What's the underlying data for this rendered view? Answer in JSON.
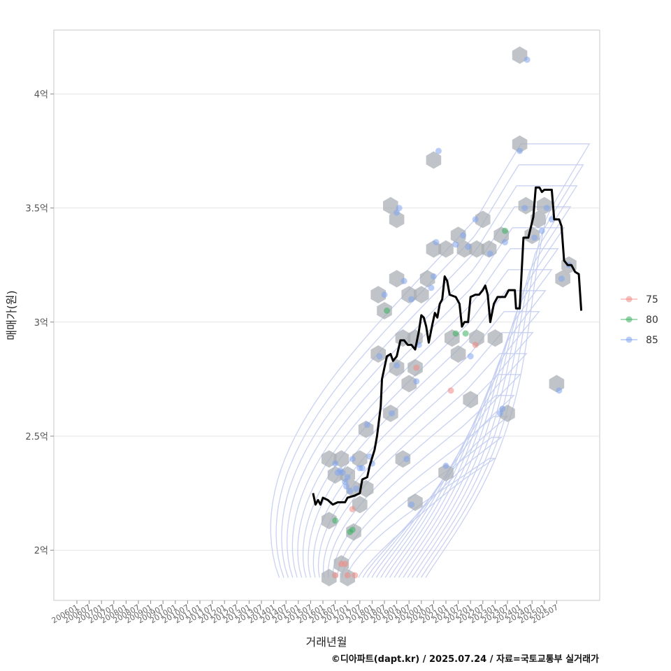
{
  "chart_data": {
    "type": "scatter",
    "xlabel": "거래년월",
    "ylabel": "매매가(원)",
    "caption": "©디아파트(dapt.kr) / 2025.07.24 / 자료=국토교통부 실거래가",
    "x_ticks": [
      "200601",
      "200607",
      "200701",
      "200707",
      "200801",
      "200807",
      "200901",
      "200907",
      "201001",
      "201007",
      "201101",
      "201107",
      "201201",
      "201207",
      "201301",
      "201307",
      "201401",
      "201407",
      "201501",
      "201507",
      "201601",
      "201607",
      "201701",
      "201707",
      "201801",
      "201807",
      "201901",
      "201907",
      "202001",
      "202007",
      "202101",
      "202107",
      "202201",
      "202207",
      "202301",
      "202307",
      "202401",
      "202407",
      "202501",
      "202507"
    ],
    "y_ticks": [
      {
        "value": 2.0,
        "label": "2억"
      },
      {
        "value": 2.5,
        "label": "2.5억"
      },
      {
        "value": 3.0,
        "label": "3억"
      },
      {
        "value": 3.5,
        "label": "3.5억"
      },
      {
        "value": 4.0,
        "label": "4억"
      }
    ],
    "ylim": [
      1.78,
      4.28
    ],
    "y_unit": "억원",
    "grid": true,
    "legend_position": "right",
    "legend": [
      {
        "label": "75",
        "color": "#f08b84"
      },
      {
        "label": "80",
        "color": "#38b060"
      },
      {
        "label": "85",
        "color": "#7fa4ee"
      }
    ],
    "colors": {
      "hex": "#a7adb3",
      "line": "#000000",
      "contour": "#c3cdf0",
      "grid": "#e3e3e3"
    },
    "series": [
      {
        "name": "75",
        "points": [
          [
            2016.5,
            1.89
          ],
          [
            2016.75,
            1.94
          ],
          [
            2016.9,
            1.94
          ],
          [
            2017.0,
            1.89
          ],
          [
            2017.3,
            1.89
          ],
          [
            2017.2,
            2.18
          ],
          [
            2019.8,
            2.8
          ],
          [
            2021.2,
            2.7
          ],
          [
            2022.2,
            2.9
          ]
        ]
      },
      {
        "name": "80",
        "points": [
          [
            2016.5,
            2.13
          ],
          [
            2017.1,
            2.08
          ],
          [
            2017.2,
            2.09
          ],
          [
            2018.6,
            3.05
          ],
          [
            2021.4,
            2.95
          ],
          [
            2021.8,
            2.95
          ],
          [
            2023.4,
            3.4
          ]
        ]
      },
      {
        "name": "85",
        "points": [
          [
            2016.5,
            2.38
          ],
          [
            2016.6,
            2.34
          ],
          [
            2016.7,
            2.35
          ],
          [
            2016.8,
            2.34
          ],
          [
            2016.9,
            2.3
          ],
          [
            2016.95,
            2.28
          ],
          [
            2017.0,
            2.32
          ],
          [
            2017.1,
            2.26
          ],
          [
            2017.2,
            2.4
          ],
          [
            2017.35,
            2.27
          ],
          [
            2017.5,
            2.36
          ],
          [
            2017.6,
            2.36
          ],
          [
            2017.8,
            2.55
          ],
          [
            2017.9,
            2.41
          ],
          [
            2018.0,
            2.38
          ],
          [
            2018.3,
            2.85
          ],
          [
            2018.5,
            3.12
          ],
          [
            2018.8,
            2.6
          ],
          [
            2019.0,
            2.81
          ],
          [
            2019.0,
            3.48
          ],
          [
            2019.1,
            3.5
          ],
          [
            2019.3,
            3.18
          ],
          [
            2019.4,
            2.4
          ],
          [
            2019.6,
            3.1
          ],
          [
            2019.6,
            2.2
          ],
          [
            2019.8,
            2.74
          ],
          [
            2019.9,
            2.9
          ],
          [
            2020.4,
            3.15
          ],
          [
            2020.5,
            3.2
          ],
          [
            2020.6,
            3.35
          ],
          [
            2020.7,
            3.75
          ],
          [
            2021.0,
            2.37
          ],
          [
            2021.4,
            3.34
          ],
          [
            2021.7,
            3.38
          ],
          [
            2021.9,
            3.33
          ],
          [
            2022.0,
            2.85
          ],
          [
            2022.2,
            3.45
          ],
          [
            2022.8,
            3.3
          ],
          [
            2023.2,
            2.6
          ],
          [
            2023.3,
            2.62
          ],
          [
            2023.4,
            3.35
          ],
          [
            2024.0,
            3.75
          ],
          [
            2024.2,
            3.5
          ],
          [
            2024.3,
            4.15
          ],
          [
            2024.6,
            3.37
          ],
          [
            2024.9,
            3.4
          ],
          [
            2025.1,
            3.5
          ],
          [
            2025.3,
            3.45
          ],
          [
            2025.6,
            2.7
          ],
          [
            2025.7,
            3.19
          ],
          [
            2026.0,
            3.25
          ]
        ]
      }
    ],
    "hexbins": [
      [
        2016.25,
        2.4
      ],
      [
        2016.75,
        2.4
      ],
      [
        2016.5,
        2.33
      ],
      [
        2017.0,
        2.33
      ],
      [
        2017.5,
        2.4
      ],
      [
        2017.25,
        2.27
      ],
      [
        2017.75,
        2.27
      ],
      [
        2017.5,
        2.2
      ],
      [
        2016.25,
        2.13
      ],
      [
        2017.25,
        2.08
      ],
      [
        2016.75,
        1.94
      ],
      [
        2016.25,
        1.88
      ],
      [
        2017.0,
        1.88
      ],
      [
        2017.75,
        2.53
      ],
      [
        2018.25,
        2.86
      ],
      [
        2018.25,
        3.12
      ],
      [
        2018.5,
        3.05
      ],
      [
        2018.75,
        2.6
      ],
      [
        2018.75,
        3.51
      ],
      [
        2019.0,
        3.45
      ],
      [
        2019.0,
        3.19
      ],
      [
        2019.25,
        2.93
      ],
      [
        2019.0,
        2.8
      ],
      [
        2019.25,
        2.4
      ],
      [
        2019.5,
        2.73
      ],
      [
        2019.5,
        3.12
      ],
      [
        2019.75,
        2.93
      ],
      [
        2019.75,
        2.8
      ],
      [
        2019.75,
        2.21
      ],
      [
        2020.0,
        3.12
      ],
      [
        2020.25,
        3.19
      ],
      [
        2020.5,
        3.32
      ],
      [
        2020.5,
        3.71
      ],
      [
        2021.0,
        2.34
      ],
      [
        2021.0,
        3.32
      ],
      [
        2021.25,
        2.93
      ],
      [
        2021.5,
        3.38
      ],
      [
        2021.75,
        3.32
      ],
      [
        2021.5,
        2.86
      ],
      [
        2022.0,
        2.66
      ],
      [
        2022.25,
        3.32
      ],
      [
        2022.25,
        2.93
      ],
      [
        2022.5,
        3.45
      ],
      [
        2022.75,
        3.32
      ],
      [
        2023.0,
        2.93
      ],
      [
        2023.25,
        3.38
      ],
      [
        2023.5,
        2.6
      ],
      [
        2024.0,
        4.17
      ],
      [
        2024.0,
        3.78
      ],
      [
        2024.25,
        3.51
      ],
      [
        2024.5,
        3.38
      ],
      [
        2024.75,
        3.45
      ],
      [
        2025.0,
        3.51
      ],
      [
        2025.75,
        3.19
      ],
      [
        2025.5,
        2.73
      ],
      [
        2026.0,
        3.25
      ]
    ],
    "trend_line": [
      [
        2015.6,
        2.25
      ],
      [
        2015.7,
        2.2
      ],
      [
        2015.8,
        2.22
      ],
      [
        2015.9,
        2.2
      ],
      [
        2016.0,
        2.23
      ],
      [
        2016.2,
        2.22
      ],
      [
        2016.4,
        2.2
      ],
      [
        2016.6,
        2.21
      ],
      [
        2016.9,
        2.21
      ],
      [
        2017.0,
        2.23
      ],
      [
        2017.3,
        2.24
      ],
      [
        2017.5,
        2.25
      ],
      [
        2017.6,
        2.31
      ],
      [
        2017.8,
        2.32
      ],
      [
        2017.9,
        2.37
      ],
      [
        2018.1,
        2.44
      ],
      [
        2018.2,
        2.5
      ],
      [
        2018.35,
        2.63
      ],
      [
        2018.4,
        2.75
      ],
      [
        2018.5,
        2.8
      ],
      [
        2018.6,
        2.85
      ],
      [
        2018.75,
        2.86
      ],
      [
        2018.85,
        2.83
      ],
      [
        2019.0,
        2.85
      ],
      [
        2019.15,
        2.92
      ],
      [
        2019.3,
        2.92
      ],
      [
        2019.45,
        2.9
      ],
      [
        2019.6,
        2.9
      ],
      [
        2019.75,
        2.88
      ],
      [
        2019.9,
        2.96
      ],
      [
        2020.0,
        3.03
      ],
      [
        2020.1,
        3.02
      ],
      [
        2020.2,
        2.98
      ],
      [
        2020.3,
        2.91
      ],
      [
        2020.45,
        2.99
      ],
      [
        2020.55,
        3.04
      ],
      [
        2020.65,
        3.02
      ],
      [
        2020.75,
        3.08
      ],
      [
        2020.85,
        3.1
      ],
      [
        2020.95,
        3.2
      ],
      [
        2021.05,
        3.18
      ],
      [
        2021.15,
        3.12
      ],
      [
        2021.4,
        3.11
      ],
      [
        2021.55,
        3.08
      ],
      [
        2021.65,
        2.98
      ],
      [
        2021.75,
        3.0
      ],
      [
        2021.9,
        3.0
      ],
      [
        2022.0,
        3.11
      ],
      [
        2022.2,
        3.12
      ],
      [
        2022.35,
        3.12
      ],
      [
        2022.5,
        3.14
      ],
      [
        2022.6,
        3.16
      ],
      [
        2022.7,
        3.12
      ],
      [
        2022.8,
        3.0
      ],
      [
        2022.95,
        3.08
      ],
      [
        2023.1,
        3.11
      ],
      [
        2023.4,
        3.11
      ],
      [
        2023.55,
        3.14
      ],
      [
        2023.8,
        3.14
      ],
      [
        2023.85,
        3.06
      ],
      [
        2024.0,
        3.06
      ],
      [
        2024.15,
        3.37
      ],
      [
        2024.35,
        3.37
      ],
      [
        2024.55,
        3.46
      ],
      [
        2024.65,
        3.59
      ],
      [
        2024.8,
        3.59
      ],
      [
        2024.9,
        3.57
      ],
      [
        2025.0,
        3.58
      ],
      [
        2025.3,
        3.58
      ],
      [
        2025.4,
        3.45
      ],
      [
        2025.6,
        3.45
      ],
      [
        2025.7,
        3.42
      ],
      [
        2025.8,
        3.27
      ],
      [
        2025.95,
        3.25
      ],
      [
        2026.1,
        3.25
      ],
      [
        2026.25,
        3.22
      ],
      [
        2026.4,
        3.21
      ],
      [
        2026.5,
        3.05
      ]
    ],
    "density": {
      "peak": [
        2017.2,
        2.28
      ],
      "x_range": [
        2014.0,
        2026.5
      ],
      "y_range": [
        1.88,
        4.15
      ]
    }
  }
}
